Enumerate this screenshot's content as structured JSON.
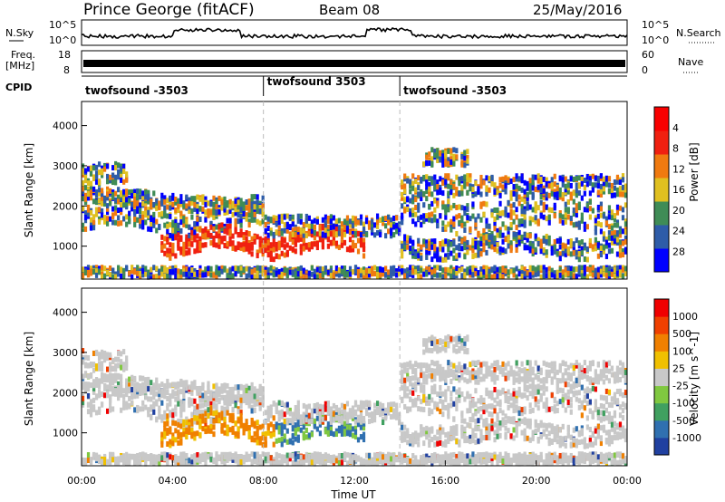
{
  "header": {
    "title": "Prince George (fitACF)",
    "beam": "Beam 08",
    "date": "25/May/2016"
  },
  "nsky_panel": {
    "left_label": "N.Sky",
    "right_label": "N.Search",
    "left_ticks": [
      "10^5",
      "10^0"
    ],
    "right_ticks": [
      "10^5",
      "10^0"
    ]
  },
  "freq_panel": {
    "left_label_1": "Freq.",
    "left_label_2": "[MHz]",
    "right_label": "Nave",
    "left_ticks": [
      "18",
      "8"
    ],
    "right_ticks": [
      "60",
      "0"
    ]
  },
  "cpid_panel": {
    "label": "CPID",
    "segments": [
      {
        "name": "twofsound -3503",
        "start": 0,
        "end": 8
      },
      {
        "name": "twofsound 3503",
        "start": 8,
        "end": 14
      },
      {
        "name": "twofsound -3503",
        "start": 14,
        "end": 24
      }
    ]
  },
  "x_axis": {
    "label": "Time UT",
    "ticks": [
      "00:00",
      "04:00",
      "08:00",
      "12:00",
      "16:00",
      "20:00",
      "00:00"
    ],
    "range_hours": [
      0,
      24
    ],
    "dashed_lines_hours": [
      8,
      14
    ]
  },
  "power_panel": {
    "ylabel": "Slant Range [km]",
    "yticks": [
      "1000",
      "2000",
      "3000",
      "4000"
    ],
    "colorbar_label": "Power [dB]",
    "colorbar_ticks": [
      "4",
      "8",
      "12",
      "16",
      "20",
      "24",
      "28"
    ],
    "colors": [
      "#0000ff",
      "#2e5ca8",
      "#3f8c56",
      "#e0c020",
      "#f07a10",
      "#f02010",
      "#f80000"
    ]
  },
  "velocity_panel": {
    "ylabel": "Slant Range [km]",
    "yticks": [
      "1000",
      "2000",
      "3000",
      "4000"
    ],
    "colorbar_label": "Velocity [m s^-1]",
    "colorbar_ticks": [
      "1000",
      "500",
      "100",
      "25",
      "-25",
      "-100",
      "-500",
      "-1000"
    ],
    "colors": [
      "#2040a0",
      "#3070b0",
      "#40a060",
      "#80c840",
      "#c8c8c8",
      "#f0c000",
      "#f08000",
      "#f04000",
      "#f00000"
    ]
  },
  "chart_data": [
    {
      "type": "line",
      "title": "Prince George (fitACF)",
      "x_range_hours": [
        0,
        24
      ],
      "series": [
        {
          "name": "N.Sky",
          "values": "approx log-scale counts, near 10^1 to 10^3"
        }
      ]
    },
    {
      "type": "heatmap",
      "ylabel": "Slant Range [km]",
      "xlabel": "Time UT",
      "ylim": [
        180,
        4600
      ],
      "colorbar": "Power [dB]",
      "zlim": [
        0,
        30
      ]
    },
    {
      "type": "heatmap",
      "ylabel": "Slant Range [km]",
      "xlabel": "Time UT",
      "ylim": [
        180,
        4600
      ],
      "colorbar": "Velocity [m s^-1]",
      "zlim": [
        -1000,
        1000
      ]
    }
  ]
}
